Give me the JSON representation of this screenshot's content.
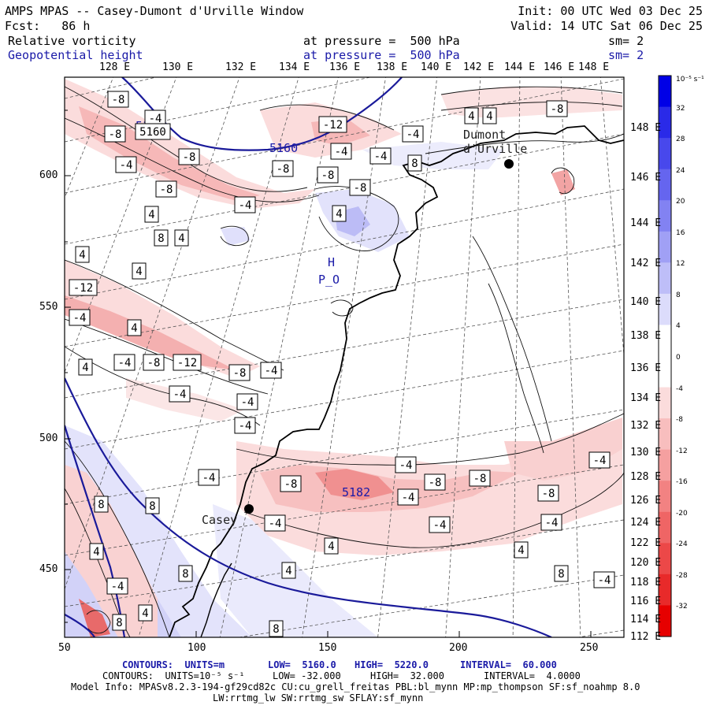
{
  "header": {
    "title": "AMPS MPAS -- Casey-Dumont d'Urville Window",
    "init": "Init: 00 UTC Wed 03 Dec 25",
    "fcst": "Fcst:   86 h",
    "valid": "Valid: 14 UTC Sat 06 Dec 25",
    "field1": {
      "name": "Relative vorticity",
      "level": "at pressure =  500 hPa",
      "sm": "sm= 2"
    },
    "field2": {
      "name": "Geopotential height",
      "level": "at pressure =  500 hPa",
      "sm": "sm= 2"
    }
  },
  "axes": {
    "top_lon": [
      "128 E",
      "130 E",
      "132 E",
      "134 E",
      "136 E",
      "138 E",
      "140 E",
      "142 E",
      "144 E",
      "146 E",
      "148 E"
    ],
    "right_lon": [
      "148 E",
      "146 E",
      "144 E",
      "142 E",
      "140 E",
      "138 E",
      "136 E",
      "134 E",
      "132 E",
      "130 E",
      "128 E",
      "126 E",
      "124 E",
      "122 E",
      "120 E",
      "118 E",
      "116 E",
      "114 E",
      "112 E"
    ],
    "left_y": [
      "600",
      "550",
      "500",
      "450"
    ],
    "bottom_x": [
      "50",
      "100",
      "150",
      "200",
      "250"
    ]
  },
  "colorbar": {
    "unit": "10⁻⁵ s⁻¹",
    "levels": [
      "32",
      "28",
      "24",
      "20",
      "16",
      "12",
      "8",
      "4",
      "0",
      "-4",
      "-8",
      "-12",
      "-16",
      "-20",
      "-24",
      "-28",
      "-32"
    ],
    "colors": [
      "#0000e6",
      "#2a2ae8",
      "#4848ec",
      "#6565ef",
      "#8282f2",
      "#a0a0f5",
      "#bebef8",
      "#dcdcfb",
      "#ffffff",
      "#ffffff",
      "#fbdcdc",
      "#f8bebe",
      "#f5a0a0",
      "#f28282",
      "#ef6565",
      "#ec4848",
      "#e82a2a",
      "#e60000"
    ]
  },
  "map": {
    "stations": [
      {
        "name": "Casey"
      },
      {
        "name": "Dumont\nd'Urville"
      }
    ],
    "height_labels": [
      "5160",
      "5160",
      "5182"
    ],
    "pressure_labels": [
      "H",
      "P_O"
    ],
    "vorticity_labels": [
      "-8",
      "-4",
      "-8",
      "5160",
      "-4",
      "-8",
      "-8",
      "-12",
      "-4",
      "-8",
      "-4",
      "-4",
      "-4",
      "8",
      "4",
      "-8",
      "-8",
      "4",
      "8",
      "4",
      "4",
      "4",
      "4",
      "4",
      "-8",
      "-12",
      "-4",
      "4",
      "-4",
      "-8",
      "-12",
      "-8",
      "-4",
      "-4",
      "-4",
      "-4",
      "4",
      "-8",
      "-4",
      "-8",
      "-8",
      "-4",
      "-4",
      "-4",
      "4",
      "8",
      "8",
      "-8",
      "-4",
      "4",
      "8",
      "-4",
      "4",
      "4",
      "-4",
      "4",
      "8",
      "8",
      "8",
      "-4",
      "-4"
    ]
  },
  "footer": {
    "line1": {
      "contours": "CONTOURS:  UNITS=m",
      "low": "LOW=  5160.0",
      "high": "HIGH=  5220.0",
      "interval": "INTERVAL=  60.000"
    },
    "line2": {
      "contours": "CONTOURS:  UNITS=10⁻⁵ s⁻¹",
      "low": "LOW= -32.000",
      "high": "HIGH=  32.000",
      "interval": "INTERVAL=  4.0000"
    },
    "line3": "Model Info: MPASv8.2.3-194-gf29cd82c CU:cu_grell_freitas PBL:bl_mynn MP:mp_thompson SF:sf_noahmp 8.0",
    "line4": "LW:rrtmg_lw SW:rrtmg_sw SFLAY:sf_mynn"
  }
}
